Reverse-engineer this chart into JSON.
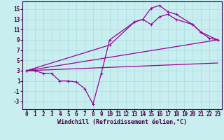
{
  "xlabel": "Windchill (Refroidissement éolien,°C)",
  "bg_color": "#c8eef0",
  "line_color": "#990099",
  "xlim": [
    -0.5,
    23.5
  ],
  "ylim": [
    -4.5,
    16.5
  ],
  "xticks": [
    0,
    1,
    2,
    3,
    4,
    5,
    6,
    7,
    8,
    9,
    10,
    11,
    12,
    13,
    14,
    15,
    16,
    17,
    18,
    19,
    20,
    21,
    22,
    23
  ],
  "yticks": [
    -3,
    -1,
    1,
    3,
    5,
    7,
    9,
    11,
    13,
    15
  ],
  "line1_x": [
    0,
    1,
    2,
    3,
    4,
    5,
    6,
    7,
    8,
    9,
    10,
    13,
    14,
    15,
    16,
    17,
    18,
    20,
    21,
    22,
    23
  ],
  "line1_y": [
    3,
    3,
    2.5,
    2.5,
    1,
    1,
    0.8,
    -0.5,
    -3.5,
    2.5,
    9,
    12.5,
    13,
    15.2,
    15.7,
    14.5,
    14,
    12,
    10.5,
    9.3,
    9.0
  ],
  "line2_x": [
    0,
    10,
    13,
    14,
    15,
    16,
    17,
    18,
    20,
    21,
    23
  ],
  "line2_y": [
    3,
    8.0,
    12.5,
    13.0,
    12.0,
    13.5,
    14.0,
    13.0,
    12.0,
    10.5,
    9.0
  ],
  "line3_x": [
    0,
    23
  ],
  "line3_y": [
    3,
    9.0
  ],
  "line4_x": [
    0,
    23
  ],
  "line4_y": [
    3,
    4.5
  ],
  "grid_color": "#aadde0",
  "xlabel_fontsize": 6,
  "tick_fontsize": 5.5
}
